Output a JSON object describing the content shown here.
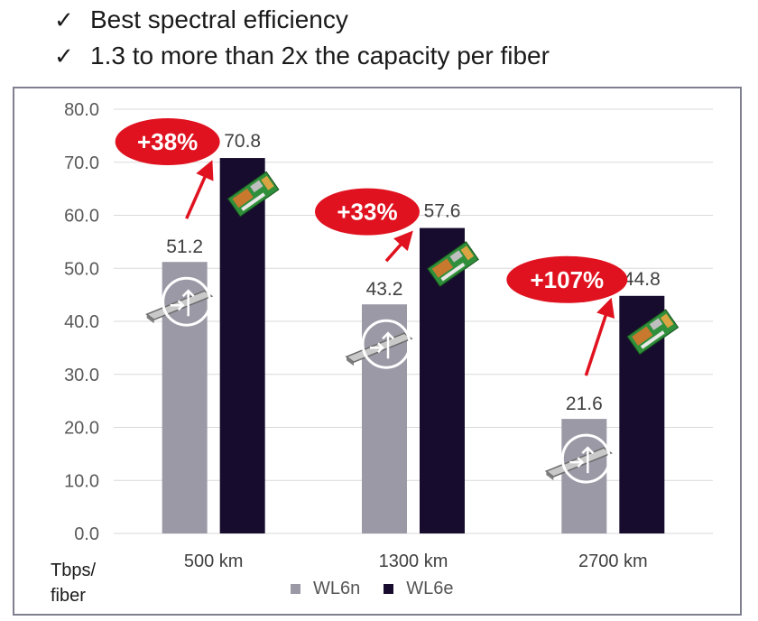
{
  "bullets": [
    {
      "icon": "check-icon",
      "text": "Best spectral efficiency"
    },
    {
      "icon": "check-icon",
      "text": "1.3 to more than 2x the capacity per fiber"
    }
  ],
  "chart_data": {
    "type": "bar",
    "categories": [
      "500 km",
      "1300 km",
      "2700 km"
    ],
    "series": [
      {
        "name": "WL6n",
        "values": [
          51.2,
          43.2,
          21.6
        ],
        "color": "#9b99a6"
      },
      {
        "name": "WL6e",
        "values": [
          70.8,
          57.6,
          44.8
        ],
        "color": "#170c2e"
      }
    ],
    "yticks": [
      "0.0",
      "10.0",
      "20.0",
      "30.0",
      "40.0",
      "50.0",
      "60.0",
      "70.0",
      "80.0"
    ],
    "ylim": [
      0,
      80
    ],
    "ylabel_lines": [
      "Tbps/",
      "fiber"
    ],
    "grid": true,
    "legend_position": "bottom",
    "annotations": [
      "+38%",
      "+33%",
      "+107%"
    ],
    "annotation_color": "#e0121f",
    "arrow_color": "#e0121f",
    "icons": [
      "pluggable-transceiver-icon",
      "circuit-board-icon"
    ]
  }
}
